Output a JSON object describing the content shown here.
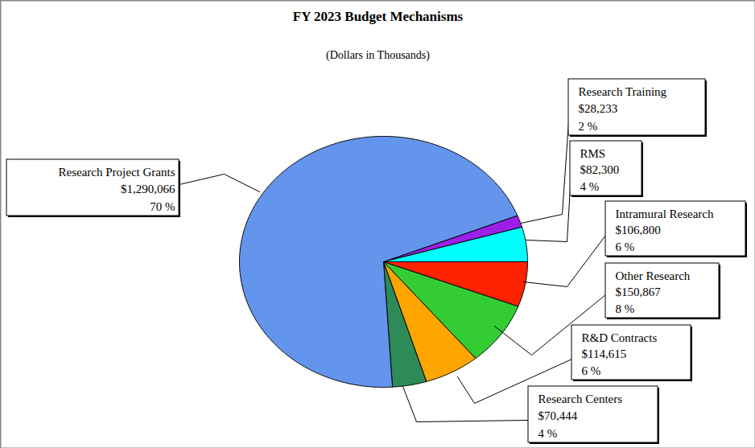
{
  "chart_data": {
    "type": "pie",
    "title": "FY 2023 Budget Mechanisms",
    "subtitle": "(Dollars in Thousands)",
    "categories": [
      "Research Training",
      "RMS",
      "Intramural Research",
      "Other Research",
      "R&D Contracts",
      "Research Centers",
      "Research Project Grants"
    ],
    "values": [
      28233,
      82300,
      106800,
      150867,
      114615,
      70444,
      1290066
    ],
    "value_labels": [
      "$28,233",
      "$82,300",
      "$106,800",
      "$150,867",
      "$114,615",
      "$70,444",
      "$1,290,066"
    ],
    "percents": [
      2,
      4,
      6,
      8,
      6,
      4,
      70
    ],
    "percent_labels": [
      "2 %",
      "4 %",
      "6 %",
      "8 %",
      "6 %",
      "4 %",
      "70 %"
    ],
    "colors": [
      "#9b1fe8",
      "#00ffff",
      "#ff2200",
      "#33cc33",
      "#ffa500",
      "#2e8b57",
      "#6495ed"
    ],
    "data_labels": true
  }
}
